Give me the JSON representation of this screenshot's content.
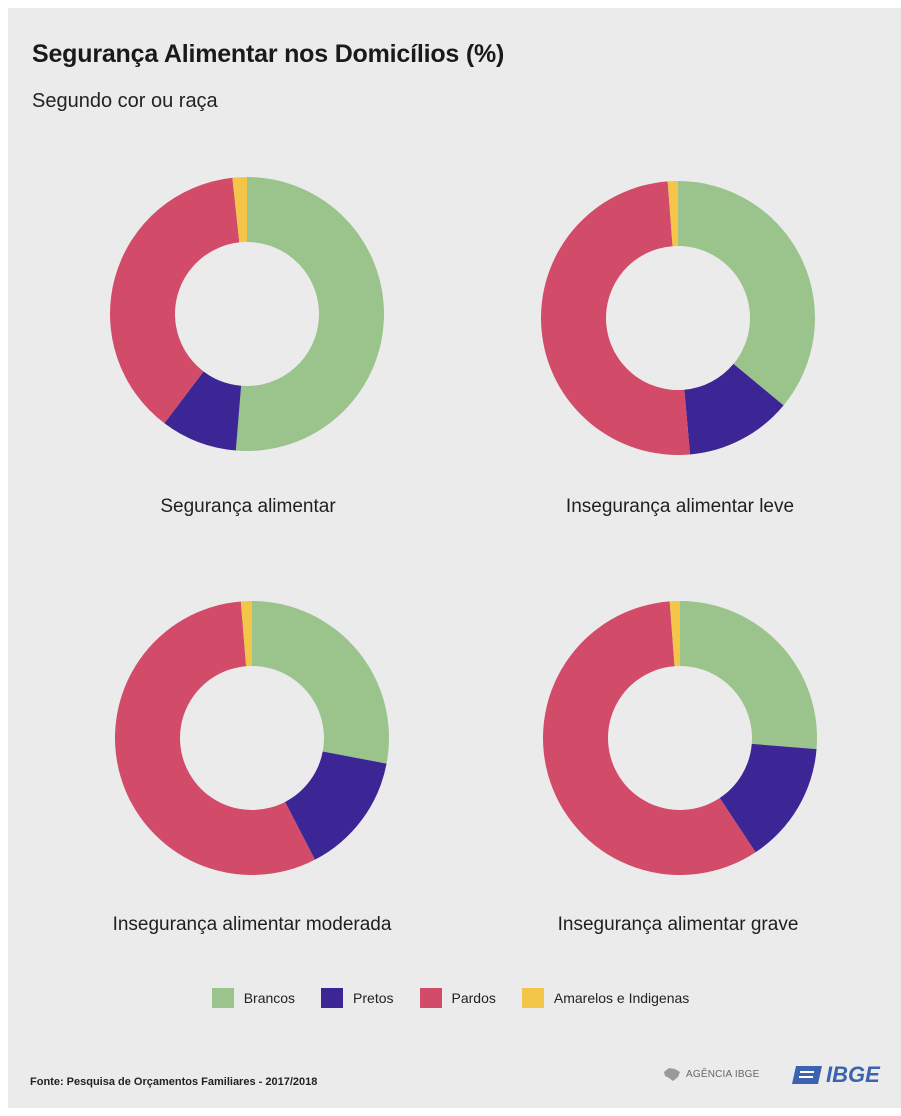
{
  "header": {
    "title": "Segurança Alimentar nos Domicílios (%)",
    "subtitle": "Segundo cor ou raça"
  },
  "colors": {
    "Brancos": "#9ac48c",
    "Pretos": "#3c2594",
    "Pardos": "#d24b68",
    "Amarelos e Indígenas": "#f3c64a"
  },
  "chart_data": [
    {
      "type": "pie",
      "donut": true,
      "title": "Segurança alimentar",
      "series": [
        {
          "name": "Brancos",
          "value": 51.3
        },
        {
          "name": "Pretos",
          "value": 9.0
        },
        {
          "name": "Pardos",
          "value": 38.0
        },
        {
          "name": "Amarelos e Indígenas",
          "value": 1.7
        }
      ]
    },
    {
      "type": "pie",
      "donut": true,
      "title": "Insegurança alimentar leve",
      "series": [
        {
          "name": "Brancos",
          "value": 36.0
        },
        {
          "name": "Pretos",
          "value": 12.6
        },
        {
          "name": "Pardos",
          "value": 50.2
        },
        {
          "name": "Amarelos e Indígenas",
          "value": 1.2
        }
      ]
    },
    {
      "type": "pie",
      "donut": true,
      "title": "Insegurança alimentar moderada",
      "series": [
        {
          "name": "Brancos",
          "value": 28.0
        },
        {
          "name": "Pretos",
          "value": 14.4
        },
        {
          "name": "Pardos",
          "value": 56.3
        },
        {
          "name": "Amarelos e Indígenas",
          "value": 1.3
        }
      ]
    },
    {
      "type": "pie",
      "donut": true,
      "title": "Insegurança alimentar grave",
      "series": [
        {
          "name": "Brancos",
          "value": 26.3
        },
        {
          "name": "Pretos",
          "value": 14.4
        },
        {
          "name": "Pardos",
          "value": 58.1
        },
        {
          "name": "Amarelos e Indígenas",
          "value": 1.2
        }
      ]
    }
  ],
  "legend": {
    "placement": "bottom-center",
    "items": [
      "Brancos",
      "Pretos",
      "Pardos",
      "Amarelos e Indigenas"
    ]
  },
  "footer": {
    "source": "Fonte: Pesquisa de Orçamentos Familiares - 2017/2018",
    "agencia_logo": "AGÊNCIA IBGE",
    "ibge_logo": "IBGE"
  }
}
